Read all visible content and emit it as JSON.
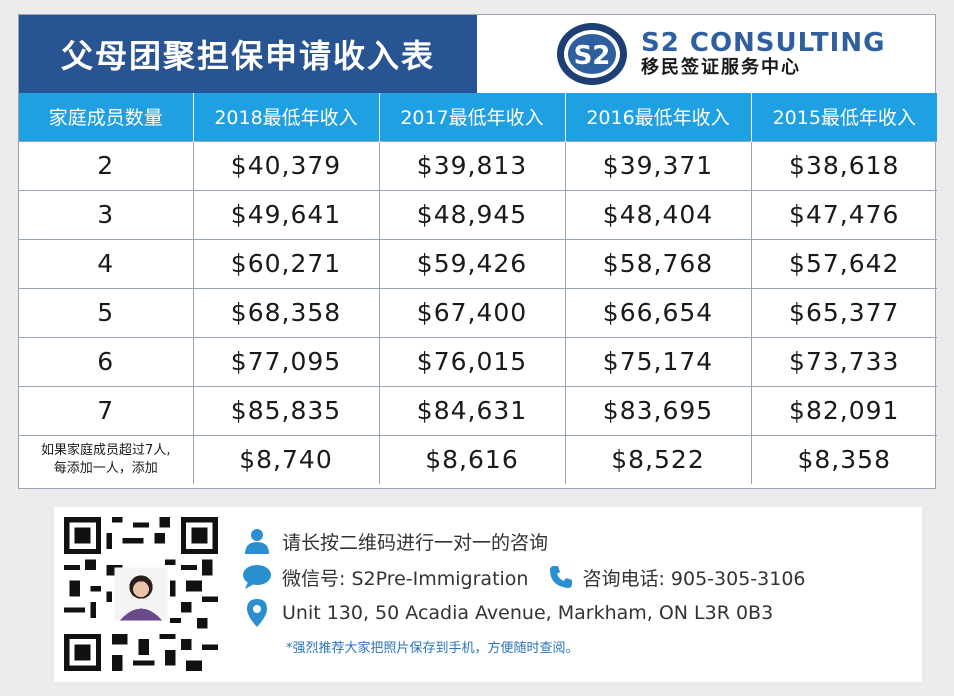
{
  "title": "父母团聚担保申请收入表",
  "brand": {
    "name": "S2 CONSULTING",
    "subtitle": "移民签证服务中心",
    "logo_text": "S2",
    "color": "#2f5f9e"
  },
  "table": {
    "headers": [
      "家庭成员数量",
      "2018最低年收入",
      "2017最低年收入",
      "2016最低年收入",
      "2015最低年收入"
    ],
    "rows": [
      [
        "2",
        "$40,379",
        "$39,813",
        "$39,371",
        "$38,618"
      ],
      [
        "3",
        "$49,641",
        "$48,945",
        "$48,404",
        "$47,476"
      ],
      [
        "4",
        "$60,271",
        "$59,426",
        "$58,768",
        "$57,642"
      ],
      [
        "5",
        "$68,358",
        "$67,400",
        "$66,654",
        "$65,377"
      ],
      [
        "6",
        "$77,095",
        "$76,015",
        "$75,174",
        "$73,733"
      ],
      [
        "7",
        "$85,835",
        "$84,631",
        "$83,695",
        "$82,091"
      ]
    ],
    "extra_row": {
      "label_line1": "如果家庭成员超过7人,",
      "label_line2": "每添加一人，添加",
      "values": [
        "$8,740",
        "$8,616",
        "$8,522",
        "$8,358"
      ]
    },
    "header_color": "#1fa0e2",
    "title_color": "#295493"
  },
  "contact": {
    "qr_prompt": "请长按二维码进行一对一的咨询",
    "wechat": "微信号: S2Pre-Immigration",
    "phone": "咨询电话: 905-305-3106",
    "address": "Unit 130, 50 Acadia Avenue, Markham, ON  L3R 0B3",
    "note": "*强烈推荐大家把照片保存到手机，方便随时查阅。",
    "icons": [
      "person-icon",
      "chat-bubble-icon",
      "phone-icon",
      "location-pin-icon"
    ]
  }
}
